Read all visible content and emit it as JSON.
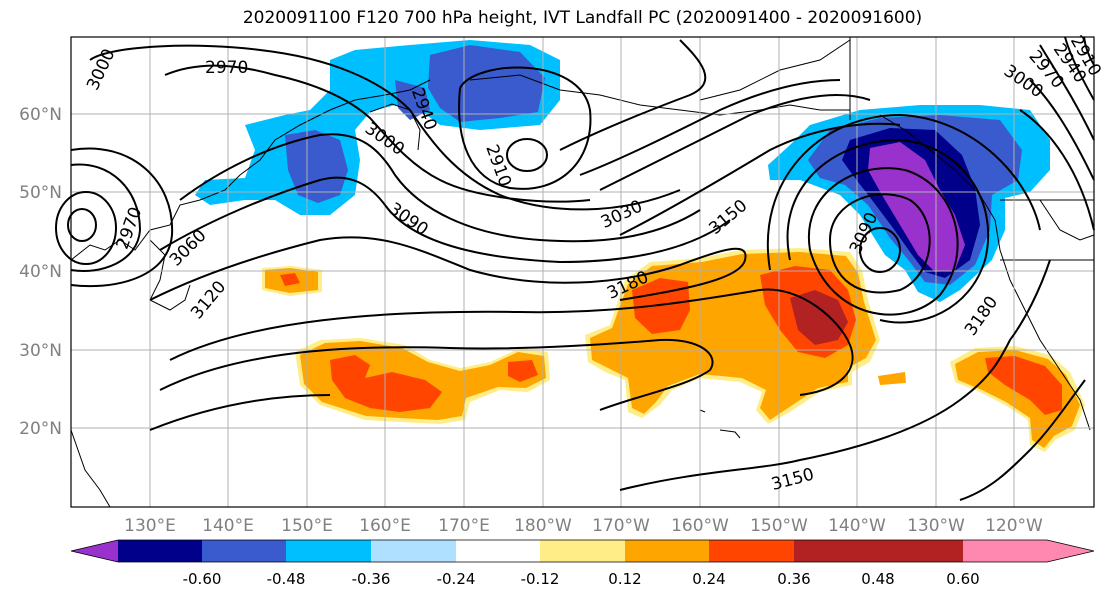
{
  "title": "2020091100 F120 700 hPa height, IVT Landfall PC (2020091400 - 2020091600)",
  "map": {
    "lat_labels": [
      "60°N",
      "50°N",
      "40°N",
      "30°N",
      "20°N"
    ],
    "lon_labels": [
      "130°E",
      "140°E",
      "150°E",
      "160°E",
      "170°E",
      "180°W",
      "170°W",
      "160°W",
      "150°W",
      "140°W",
      "130°W",
      "120°W"
    ],
    "contour_labels": [
      "2970",
      "3000",
      "3000",
      "2940",
      "2910",
      "3030",
      "3150",
      "3090",
      "3060",
      "3120",
      "3090",
      "3180",
      "3180",
      "3150",
      "2970",
      "3000",
      "2970",
      "2940",
      "2910"
    ]
  },
  "colorbar": {
    "colors": [
      "#9932cc",
      "#00008b",
      "#3a5bcd",
      "#00bfff",
      "#b0e0ff",
      "#ffffff",
      "#ffee88",
      "#ffa500",
      "#ff4500",
      "#b22222",
      "#ff88b0"
    ],
    "tick_labels": [
      "-0.60",
      "-0.48",
      "-0.36",
      "-0.24",
      "-0.12",
      "0.12",
      "0.24",
      "0.36",
      "0.48",
      "0.60"
    ]
  },
  "colors": {
    "neg_strong": "#9932cc",
    "neg_dark": "#00008b",
    "neg_mid": "#3a5bcd",
    "neg_light": "#00bfff",
    "neg_pale": "#b0e0ff",
    "pos_pale": "#ffee88",
    "pos_light": "#ffa500",
    "pos_mid": "#ff4500",
    "pos_dark": "#b22222",
    "pos_strong": "#ff88b0",
    "grid": "#b0b0b0",
    "axis_label": "#808080"
  }
}
